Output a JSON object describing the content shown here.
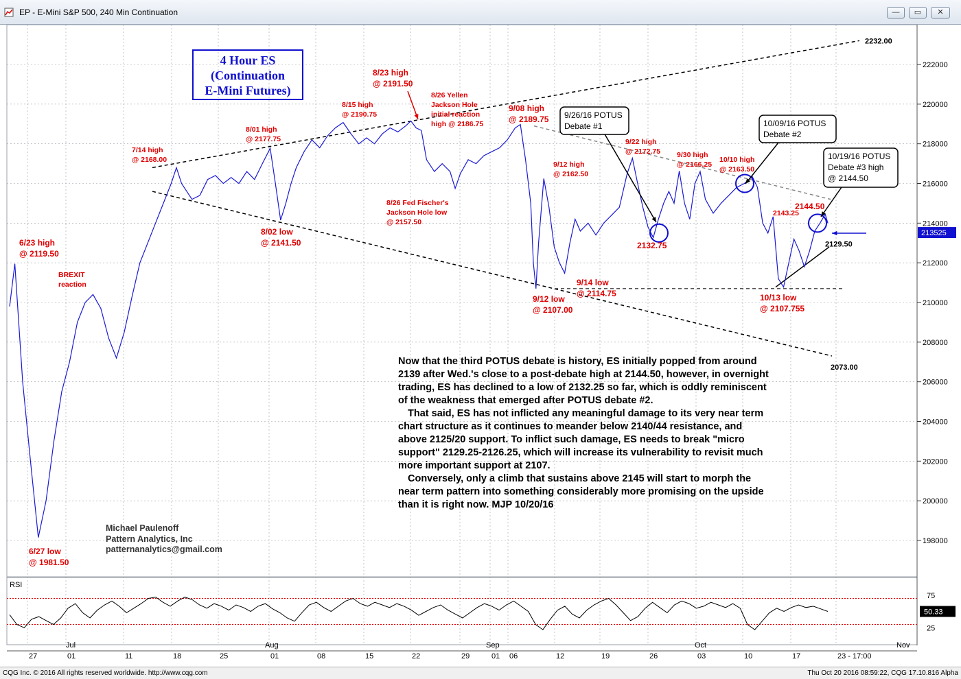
{
  "window": {
    "title": "EP - E-Mini S&P 500, 240 Min Continuation",
    "buttons": [
      "—",
      "▭",
      "✕"
    ]
  },
  "status": {
    "left": "CQG Inc. © 2016 All rights reserved worldwide. http://www.cqg.com",
    "right": "Thu Oct 20 2016 08:59:22, CQG 17.10.816 Alpha"
  },
  "title_box": {
    "line1": "4 Hour ES",
    "line2": "(Continuation",
    "line3": "E-Mini Futures)"
  },
  "author": {
    "name": "Michael Paulenoff",
    "company": "Pattern Analytics, Inc",
    "email": "patternanalytics@gmail.com"
  },
  "commentary": [
    "Now that the third POTUS debate is history, ES initially popped from around 2139 after Wed.'s close to a post-debate high at 2144.50, however, in overnight trading, ES has declined to a low of 2132.25 so far, which is oddly reminiscent of the weakness that emerged after POTUS debate #2.",
    "That said, ES has not inflicted any meaningful damage to its very near term chart structure as it continues to meander below 2140/44 resistance, and above 2125/20 support. To inflict such damage, ES needs to break \"micro support\" 2129.25-2126.25, which will increase its vulnerability to revisit much more important support at 2107.",
    "Conversely, only a climb that sustains above 2145 will start to morph the near term pattern into something considerably more promising on the upside than it is right now.  MJP 10/20/16"
  ],
  "colors": {
    "price": "#1a1ad6",
    "annotation": "#e00000",
    "accent_blue": "#1010d0",
    "rsi_ref": "#e00000",
    "grid": "#9aa0a8"
  },
  "chart_data": {
    "type": "line",
    "title": "EP - E-Mini S&P 500, 240 Min Continuation",
    "price_axis": {
      "ticks": [
        198000,
        200000,
        202000,
        204000,
        206000,
        208000,
        210000,
        212000,
        214000,
        216000,
        218000,
        220000,
        222000
      ],
      "ylim": [
        197000,
        223500
      ],
      "last_price": "213525"
    },
    "date_axis": {
      "ticks": [
        "27",
        "01",
        "11",
        "18",
        "25",
        "01",
        "08",
        "15",
        "22",
        "29",
        "01",
        "06",
        "12",
        "19",
        "26",
        "03",
        "10",
        "17",
        "23 - 17:00"
      ],
      "months": [
        "Jul",
        "Aug",
        "Sep",
        "Oct",
        "Nov"
      ]
    },
    "series": [
      {
        "values": [
          [
            0,
            2098
          ],
          [
            2,
            2119.5
          ],
          [
            5,
            2060
          ],
          [
            8,
            2020
          ],
          [
            11,
            1981.5
          ],
          [
            14,
            2000
          ],
          [
            17,
            2030
          ],
          [
            20,
            2055
          ],
          [
            23,
            2070
          ],
          [
            26,
            2090
          ],
          [
            29,
            2100
          ],
          [
            32,
            2104
          ],
          [
            35,
            2097
          ],
          [
            38,
            2082
          ],
          [
            41,
            2072
          ],
          [
            44,
            2085
          ],
          [
            47,
            2103
          ],
          [
            50,
            2120
          ],
          [
            53,
            2130
          ],
          [
            56,
            2140
          ],
          [
            59,
            2150
          ],
          [
            62,
            2160
          ],
          [
            64,
            2168
          ],
          [
            66,
            2160
          ],
          [
            68,
            2156
          ],
          [
            70,
            2152
          ],
          [
            73,
            2154
          ],
          [
            76,
            2162
          ],
          [
            79,
            2164
          ],
          [
            82,
            2160
          ],
          [
            85,
            2163
          ],
          [
            88,
            2160
          ],
          [
            91,
            2166
          ],
          [
            94,
            2162
          ],
          [
            97,
            2170
          ],
          [
            100,
            2177.75
          ],
          [
            102,
            2160
          ],
          [
            104,
            2141.5
          ],
          [
            106,
            2150
          ],
          [
            108,
            2160
          ],
          [
            110,
            2168
          ],
          [
            113,
            2176
          ],
          [
            116,
            2182
          ],
          [
            119,
            2178
          ],
          [
            122,
            2184
          ],
          [
            125,
            2188
          ],
          [
            128,
            2190.75
          ],
          [
            131,
            2185
          ],
          [
            134,
            2180
          ],
          [
            137,
            2183
          ],
          [
            140,
            2180
          ],
          [
            143,
            2185
          ],
          [
            146,
            2188
          ],
          [
            149,
            2186
          ],
          [
            152,
            2189
          ],
          [
            154,
            2191.5
          ],
          [
            156,
            2188
          ],
          [
            158,
            2186.75
          ],
          [
            160,
            2172
          ],
          [
            163,
            2166
          ],
          [
            166,
            2170
          ],
          [
            169,
            2166
          ],
          [
            171,
            2157.5
          ],
          [
            173,
            2165
          ],
          [
            176,
            2172
          ],
          [
            179,
            2170
          ],
          [
            182,
            2174
          ],
          [
            185,
            2176
          ],
          [
            188,
            2178
          ],
          [
            191,
            2182
          ],
          [
            194,
            2188
          ],
          [
            196,
            2189.75
          ],
          [
            198,
            2172
          ],
          [
            200,
            2150
          ],
          [
            201,
            2120
          ],
          [
            202,
            2107
          ],
          [
            203,
            2130
          ],
          [
            205,
            2162.5
          ],
          [
            207,
            2148
          ],
          [
            209,
            2128
          ],
          [
            211,
            2120
          ],
          [
            213,
            2114.75
          ],
          [
            215,
            2130
          ],
          [
            217,
            2142
          ],
          [
            219,
            2136
          ],
          [
            222,
            2140
          ],
          [
            225,
            2134
          ],
          [
            228,
            2140
          ],
          [
            231,
            2144
          ],
          [
            234,
            2148
          ],
          [
            237,
            2165
          ],
          [
            239,
            2172.75
          ],
          [
            241,
            2160
          ],
          [
            243,
            2148
          ],
          [
            245,
            2138
          ],
          [
            247,
            2132.75
          ],
          [
            249,
            2142
          ],
          [
            251,
            2150
          ],
          [
            253,
            2156
          ],
          [
            255,
            2150
          ],
          [
            257,
            2166.25
          ],
          [
            259,
            2150
          ],
          [
            261,
            2142
          ],
          [
            263,
            2160
          ],
          [
            265,
            2166
          ],
          [
            267,
            2152
          ],
          [
            270,
            2145
          ],
          [
            273,
            2150
          ],
          [
            276,
            2154
          ],
          [
            279,
            2158
          ],
          [
            282,
            2160
          ],
          [
            285,
            2163.5
          ],
          [
            287,
            2158
          ],
          [
            289,
            2140
          ],
          [
            291,
            2135
          ],
          [
            293,
            2143.25
          ],
          [
            295,
            2112
          ],
          [
            297,
            2107.755
          ],
          [
            299,
            2120
          ],
          [
            301,
            2132
          ],
          [
            303,
            2126
          ],
          [
            305,
            2118
          ],
          [
            307,
            2126
          ],
          [
            309,
            2136
          ],
          [
            311,
            2140
          ],
          [
            313,
            2144.5
          ],
          [
            314,
            2140
          ]
        ],
        "note": "x = 4-hour bar index; y = price"
      }
    ],
    "annotations": [
      {
        "lines": [
          "6/23 high",
          "@ 2119.50"
        ],
        "price": 2119.5
      },
      {
        "lines": [
          "BREXIT",
          "reaction"
        ]
      },
      {
        "lines": [
          "6/27 low",
          "@ 1981.50"
        ],
        "price": 1981.5
      },
      {
        "lines": [
          "7/14 high",
          "@ 2168.00"
        ],
        "price": 2168.0
      },
      {
        "lines": [
          "8/01 high",
          "@ 2177.75"
        ],
        "price": 2177.75
      },
      {
        "lines": [
          "8/02 low",
          "@ 2141.50"
        ],
        "price": 2141.5
      },
      {
        "lines": [
          "8/15 high",
          "@ 2190.75"
        ],
        "price": 2190.75
      },
      {
        "lines": [
          "8/23 high",
          "@ 2191.50"
        ],
        "price": 2191.5
      },
      {
        "lines": [
          "8/26 Yellen",
          "Jackson Hole",
          "initial reaction",
          "high @ 2186.75"
        ],
        "price": 2186.75
      },
      {
        "lines": [
          "8/26 Fed Fischer's",
          "Jackson Hole low",
          "@ 2157.50"
        ],
        "price": 2157.5
      },
      {
        "lines": [
          "9/08 high",
          "@ 2189.75"
        ],
        "price": 2189.75
      },
      {
        "lines": [
          "9/12 high",
          "@ 2162.50"
        ],
        "price": 2162.5
      },
      {
        "lines": [
          "9/12 low",
          "@ 2107.00"
        ],
        "price": 2107.0
      },
      {
        "lines": [
          "9/14 low",
          "@ 2114.75"
        ],
        "price": 2114.75
      },
      {
        "lines": [
          "9/22 high",
          "@ 2172.75"
        ],
        "price": 2172.75
      },
      {
        "lines": [
          "2132.75"
        ],
        "price": 2132.75
      },
      {
        "lines": [
          "9/30 high",
          "@ 2166.25"
        ],
        "price": 2166.25
      },
      {
        "lines": [
          "10/10 high",
          "@ 2163.50"
        ],
        "price": 2163.5
      },
      {
        "lines": [
          "2143.25"
        ],
        "price": 2143.25
      },
      {
        "lines": [
          "2144.50"
        ],
        "price": 2144.5
      },
      {
        "lines": [
          "10/13 low",
          "@ 2107.755"
        ],
        "price": 2107.755
      }
    ],
    "callouts": [
      {
        "lines": [
          "9/26/16 POTUS",
          "Debate #1"
        ]
      },
      {
        "lines": [
          "10/09/16 POTUS",
          "Debate #2"
        ]
      },
      {
        "lines": [
          "10/19/16 POTUS",
          "Debate #3 high",
          "@ 2144.50"
        ]
      }
    ],
    "levels": [
      {
        "label": "2232.00",
        "price": 2232.0
      },
      {
        "label": "2073.00",
        "price": 2073.0
      },
      {
        "label": "2129.50",
        "price": 2129.5
      }
    ],
    "rsi": {
      "label": "RSI",
      "ticks": [
        "75",
        "25"
      ],
      "value": "50.33",
      "values": [
        45,
        30,
        25,
        38,
        42,
        36,
        30,
        40,
        55,
        62,
        48,
        40,
        52,
        60,
        66,
        58,
        48,
        55,
        62,
        70,
        72,
        64,
        58,
        66,
        72,
        68,
        60,
        55,
        62,
        58,
        52,
        60,
        56,
        50,
        58,
        62,
        54,
        48,
        40,
        35,
        48,
        60,
        64,
        56,
        50,
        58,
        66,
        70,
        62,
        58,
        64,
        60,
        56,
        62,
        58,
        52,
        44,
        50,
        56,
        60,
        52,
        46,
        40,
        48,
        56,
        62,
        58,
        52,
        60,
        66,
        58,
        50,
        30,
        22,
        38,
        52,
        58,
        46,
        40,
        52,
        60,
        66,
        70,
        60,
        48,
        36,
        42,
        55,
        64,
        56,
        48,
        60,
        66,
        62,
        55,
        58,
        64,
        60,
        56,
        62,
        55,
        30,
        22,
        35,
        48,
        55,
        50,
        56,
        60,
        56,
        58,
        54,
        50
      ]
    }
  }
}
